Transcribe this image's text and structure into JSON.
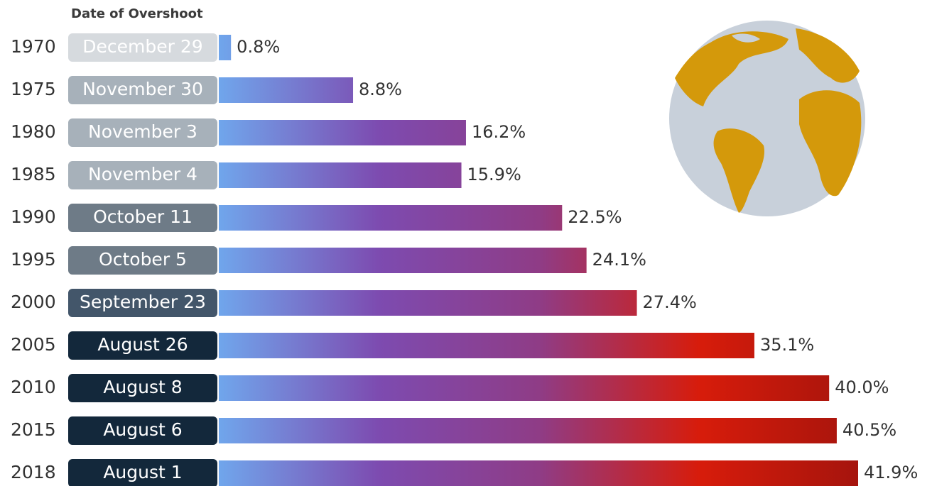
{
  "chart_data": {
    "type": "bar",
    "label_header": "Date of Overshoot",
    "categories": [
      "1970",
      "1975",
      "1980",
      "1985",
      "1990",
      "1995",
      "2000",
      "2005",
      "2010",
      "2015",
      "2018"
    ],
    "date_labels": [
      "December 29",
      "November 30",
      "November 3",
      "November 4",
      "October 11",
      "October 5",
      "September 23",
      "August 26",
      "August 8",
      "August 6",
      "August 1"
    ],
    "date_label_colors": [
      "#d6dade",
      "#a7b1ba",
      "#a7b1ba",
      "#a7b1ba",
      "#6e7b87",
      "#6e7b87",
      "#43566a",
      "#13283b",
      "#13283b",
      "#13283b",
      "#13283b"
    ],
    "values": [
      0.8,
      8.8,
      16.2,
      15.9,
      22.5,
      24.1,
      27.4,
      35.1,
      40.0,
      40.5,
      41.9
    ],
    "value_labels": [
      "0.8%",
      "8.8%",
      "16.2%",
      "15.9%",
      "22.5%",
      "24.1%",
      "27.4%",
      "35.1%",
      "40.0%",
      "40.5%",
      "41.9%"
    ],
    "gradient_colors": [
      "#70a6ec",
      "#7d4bb0",
      "#8f3c86",
      "#d71c0b",
      "#a5140d"
    ]
  }
}
